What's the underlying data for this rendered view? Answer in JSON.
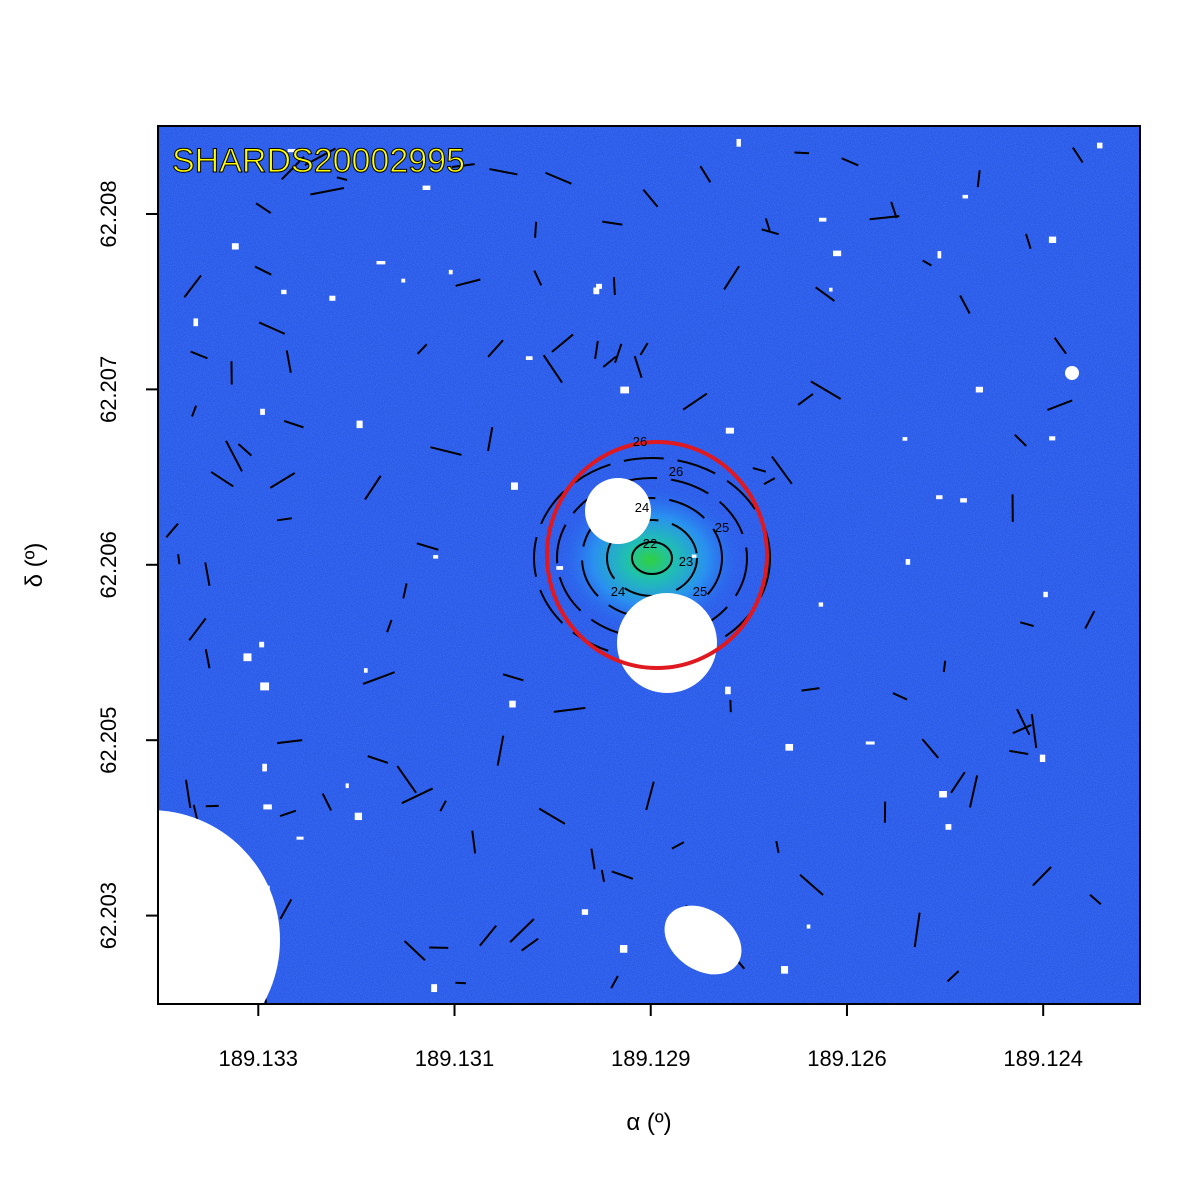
{
  "chart_data": {
    "type": "image",
    "title": "SHARDS20002995",
    "x_label": "α (º)",
    "y_label": "δ (º)",
    "xlim": [
      189.13425,
      189.12299
    ],
    "ylim": [
      62.20267,
      62.208927
    ],
    "xticks": [
      {
        "value": 189.1331,
        "label": "189.133"
      },
      {
        "value": 189.13085,
        "label": "189.131"
      },
      {
        "value": 189.1286,
        "label": "189.129"
      },
      {
        "value": 189.12635,
        "label": "189.126"
      },
      {
        "value": 189.1241,
        "label": "189.124"
      }
    ],
    "yticks": [
      {
        "value": 62.2083,
        "label": "62.208"
      },
      {
        "value": 62.20705,
        "label": "62.207"
      },
      {
        "value": 62.2058,
        "label": "62.206"
      },
      {
        "value": 62.20455,
        "label": "62.205"
      },
      {
        "value": 62.2033,
        "label": "62.203"
      }
    ],
    "contour_labels": [
      "22",
      "23",
      "24",
      "25",
      "26",
      "26",
      "24",
      "25"
    ],
    "title_color": "#ffff00",
    "circle_color": "#e01820",
    "background_color": "#1f4fe6"
  }
}
